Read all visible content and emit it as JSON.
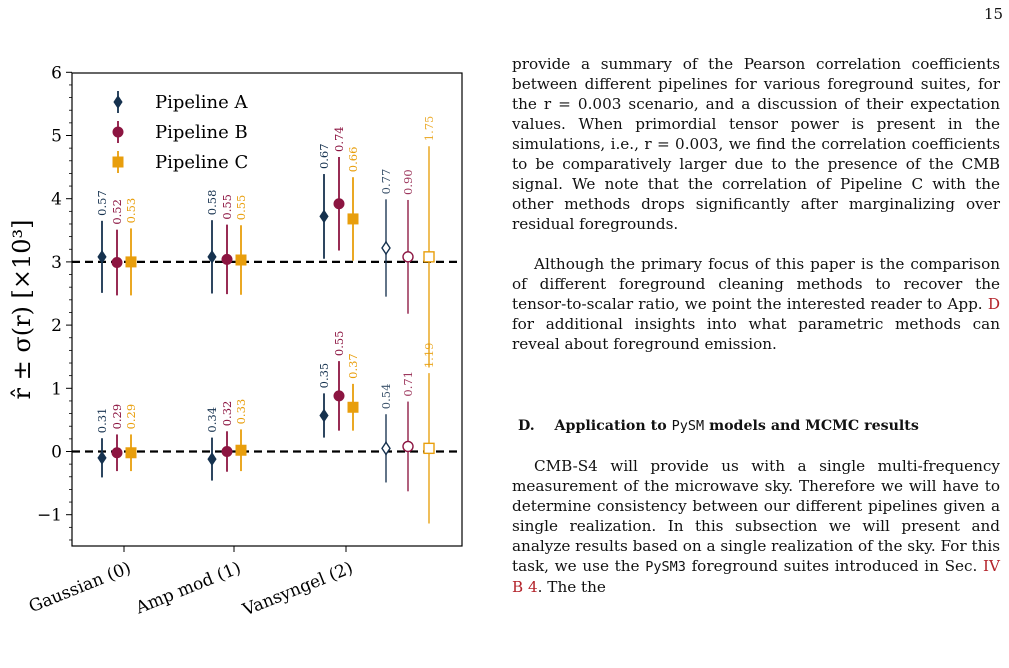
{
  "page_number": "15",
  "figure": {
    "legend": [
      {
        "label": "Pipeline A",
        "color": "#16324f",
        "marker": "diamond"
      },
      {
        "label": "Pipeline B",
        "color": "#8c1541",
        "marker": "circle"
      },
      {
        "label": "Pipeline C",
        "color": "#e89e0c",
        "marker": "square"
      }
    ]
  },
  "chart_data": {
    "type": "scatter",
    "title": "",
    "ylabel": "r̂ ± σ(r) [×10³]",
    "xlabel": "",
    "ylim": [
      -1.5,
      6
    ],
    "yticks": [
      -1,
      0,
      1,
      2,
      3,
      4,
      5,
      6
    ],
    "ytick_labels": [
      "−1",
      "0",
      "1",
      "2",
      "3",
      "4",
      "5",
      "6"
    ],
    "categories": [
      "Gaussian (0)",
      "Amp mod (1)",
      "Vansyngel (2)"
    ],
    "reference_lines": [
      0,
      3
    ],
    "legend_placement": "top-left",
    "series": [
      {
        "name": "Pipeline A",
        "color": "#16324f",
        "marker": "diamond",
        "r_input": 0,
        "points": [
          {
            "category": 0,
            "y": -0.1,
            "err": 0.31,
            "label": "0.31",
            "filled": true
          },
          {
            "category": 1,
            "y": -0.12,
            "err": 0.34,
            "label": "0.34",
            "filled": true
          },
          {
            "category": 2,
            "y": 0.57,
            "err": 0.35,
            "label": "0.35",
            "filled": true
          },
          {
            "category": 2,
            "y": 0.05,
            "err": 0.54,
            "label": "0.54",
            "filled": false
          }
        ]
      },
      {
        "name": "Pipeline B",
        "color": "#8c1541",
        "marker": "circle",
        "r_input": 0,
        "points": [
          {
            "category": 0,
            "y": -0.02,
            "err": 0.29,
            "label": "0.29",
            "filled": true
          },
          {
            "category": 1,
            "y": 0.0,
            "err": 0.32,
            "label": "0.32",
            "filled": true
          },
          {
            "category": 2,
            "y": 0.88,
            "err": 0.55,
            "label": "0.55",
            "filled": true
          },
          {
            "category": 2,
            "y": 0.08,
            "err": 0.71,
            "label": "0.71",
            "filled": false
          }
        ]
      },
      {
        "name": "Pipeline C",
        "color": "#e89e0c",
        "marker": "square",
        "r_input": 0,
        "points": [
          {
            "category": 0,
            "y": -0.02,
            "err": 0.29,
            "label": "0.29",
            "filled": true
          },
          {
            "category": 1,
            "y": 0.02,
            "err": 0.33,
            "label": "0.33",
            "filled": true
          },
          {
            "category": 2,
            "y": 0.7,
            "err": 0.37,
            "label": "0.37",
            "filled": true
          },
          {
            "category": 2,
            "y": 0.05,
            "err": 1.19,
            "label": "1.19",
            "filled": false
          }
        ]
      },
      {
        "name": "Pipeline A",
        "color": "#16324f",
        "marker": "diamond",
        "r_input": 3,
        "points": [
          {
            "category": 0,
            "y": 3.08,
            "err": 0.57,
            "label": "0.57",
            "filled": true
          },
          {
            "category": 1,
            "y": 3.08,
            "err": 0.58,
            "label": "0.58",
            "filled": true
          },
          {
            "category": 2,
            "y": 3.72,
            "err": 0.67,
            "label": "0.67",
            "filled": true
          },
          {
            "category": 2,
            "y": 3.22,
            "err": 0.77,
            "label": "0.77",
            "filled": false
          }
        ]
      },
      {
        "name": "Pipeline B",
        "color": "#8c1541",
        "marker": "circle",
        "r_input": 3,
        "points": [
          {
            "category": 0,
            "y": 2.99,
            "err": 0.52,
            "label": "0.52",
            "filled": true
          },
          {
            "category": 1,
            "y": 3.04,
            "err": 0.55,
            "label": "0.55",
            "filled": true
          },
          {
            "category": 2,
            "y": 3.92,
            "err": 0.74,
            "label": "0.74",
            "filled": true
          },
          {
            "category": 2,
            "y": 3.08,
            "err": 0.9,
            "label": "0.90",
            "filled": false
          }
        ]
      },
      {
        "name": "Pipeline C",
        "color": "#e89e0c",
        "marker": "square",
        "r_input": 3,
        "points": [
          {
            "category": 0,
            "y": 3.0,
            "err": 0.53,
            "label": "0.53",
            "filled": true
          },
          {
            "category": 1,
            "y": 3.03,
            "err": 0.55,
            "label": "0.55",
            "filled": true
          },
          {
            "category": 2,
            "y": 3.68,
            "err": 0.66,
            "label": "0.66",
            "filled": true
          },
          {
            "category": 2,
            "y": 3.08,
            "err": 1.75,
            "label": "1.75",
            "filled": false
          }
        ]
      }
    ]
  },
  "body": {
    "para1": "provide a summary of the Pearson correlation coefficients between different pipelines for various foreground suites, for the r = 0.003 scenario, and a discussion of their expectation values. When primordial tensor power is present in the simulations, i.e., r = 0.003, we find the correlation coefficients to be comparatively larger due to the presence of the CMB signal. We note that the correlation of Pipeline C with the other methods drops significantly after marginalizing over residual foregrounds.",
    "para2_before": "Although the primary focus of this paper is the comparison of different foreground cleaning methods to recover the tensor-to-scalar ratio, we point the interested reader to App.",
    "para2_link": "D",
    "para2_after": "for additional insights into what parametric methods can reveal about foreground emission.",
    "section_number": "D.",
    "section_title_before": "Application to",
    "section_title_code": "PySM",
    "section_title_after": "models and MCMC results",
    "para3_before": "CMB-S4 will provide us with a single multi-frequency measurement of the microwave sky. Therefore we will have to determine consistency between our different pipelines given a single realization. In this subsection we will present and analyze results based on a single realization of the sky. For this task, we use the",
    "para3_code": "PySM3",
    "para3_after": "foreground suites introduced in Sec.",
    "para3_link": "IV B 4",
    "para3_end": ". The the"
  }
}
